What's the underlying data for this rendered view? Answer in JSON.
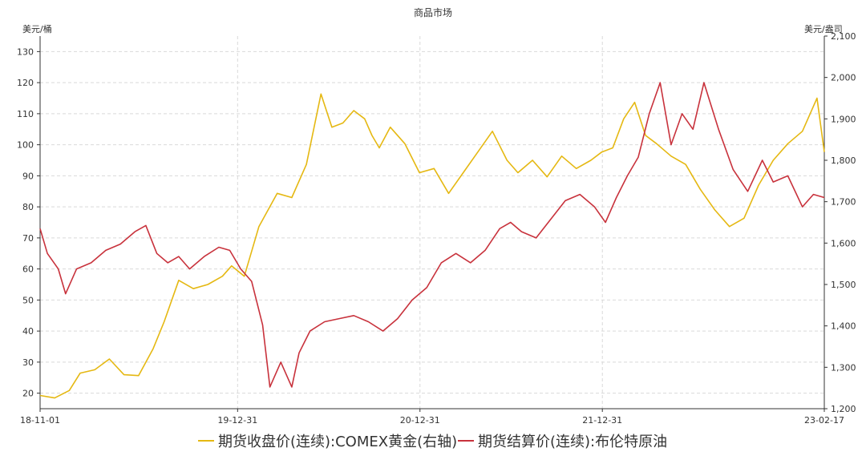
{
  "chart_data": {
    "type": "line",
    "title": "商品市场",
    "left_axis": {
      "unit": "美元/桶",
      "ylim": [
        15,
        135
      ],
      "ticks": [
        20,
        30,
        40,
        50,
        60,
        70,
        80,
        90,
        100,
        110,
        120,
        130
      ]
    },
    "right_axis": {
      "unit": "美元/盎司",
      "ylim": [
        1200,
        2100
      ],
      "ticks": [
        1200,
        1300,
        1400,
        1500,
        1600,
        1700,
        1800,
        1900,
        2000,
        2100
      ]
    },
    "x": {
      "range": [
        0,
        4.3
      ],
      "ticks": [
        0,
        1.083,
        2.083,
        3.083,
        4.3
      ],
      "tick_labels": [
        "18-11-01",
        "19-12-31",
        "20-12-31",
        "21-12-31",
        "23-02-17"
      ]
    },
    "series": [
      {
        "name": "期货收盘价(连续):COMEX黄金(右轴)",
        "axis": "right",
        "color": "#E5B812",
        "x": [
          0.0,
          0.08,
          0.16,
          0.22,
          0.3,
          0.38,
          0.46,
          0.54,
          0.62,
          0.68,
          0.76,
          0.84,
          0.92,
          1.0,
          1.05,
          1.12,
          1.2,
          1.3,
          1.38,
          1.46,
          1.54,
          1.6,
          1.66,
          1.72,
          1.78,
          1.82,
          1.86,
          1.92,
          2.0,
          2.08,
          2.16,
          2.24,
          2.32,
          2.4,
          2.48,
          2.56,
          2.62,
          2.7,
          2.78,
          2.86,
          2.94,
          3.02,
          3.08,
          3.14,
          3.2,
          3.26,
          3.32,
          3.38,
          3.46,
          3.54,
          3.62,
          3.7,
          3.78,
          3.86,
          3.94,
          4.02,
          4.1,
          4.18,
          4.26,
          4.3
        ],
        "values": [
          1232,
          1226,
          1244,
          1286,
          1294,
          1320,
          1282,
          1280,
          1345,
          1410,
          1510,
          1490,
          1500,
          1520,
          1545,
          1520,
          1640,
          1720,
          1710,
          1790,
          1960,
          1880,
          1890,
          1920,
          1900,
          1860,
          1830,
          1880,
          1840,
          1770,
          1780,
          1720,
          1770,
          1820,
          1870,
          1800,
          1770,
          1800,
          1760,
          1810,
          1780,
          1800,
          1820,
          1830,
          1900,
          1940,
          1860,
          1840,
          1810,
          1790,
          1730,
          1680,
          1640,
          1660,
          1740,
          1800,
          1840,
          1870,
          1950,
          1820
        ]
      },
      {
        "name": "期货结算价(连续):布伦特原油",
        "axis": "left",
        "color": "#C8323C",
        "x": [
          0.0,
          0.04,
          0.1,
          0.14,
          0.2,
          0.28,
          0.36,
          0.44,
          0.52,
          0.58,
          0.64,
          0.7,
          0.76,
          0.82,
          0.9,
          0.98,
          1.04,
          1.1,
          1.16,
          1.22,
          1.26,
          1.32,
          1.38,
          1.42,
          1.48,
          1.56,
          1.64,
          1.72,
          1.8,
          1.88,
          1.96,
          2.04,
          2.12,
          2.2,
          2.28,
          2.36,
          2.44,
          2.52,
          2.58,
          2.64,
          2.72,
          2.8,
          2.88,
          2.96,
          3.04,
          3.1,
          3.16,
          3.22,
          3.28,
          3.34,
          3.4,
          3.46,
          3.52,
          3.58,
          3.64,
          3.72,
          3.8,
          3.88,
          3.96,
          4.02,
          4.1,
          4.18,
          4.24,
          4.3
        ],
        "values": [
          73,
          65,
          60,
          52,
          60,
          62,
          66,
          68,
          72,
          74,
          65,
          62,
          64,
          60,
          64,
          67,
          66,
          60,
          56,
          42,
          22,
          30,
          22,
          33,
          40,
          43,
          44,
          45,
          43,
          40,
          44,
          50,
          54,
          62,
          65,
          62,
          66,
          73,
          75,
          72,
          70,
          76,
          82,
          84,
          80,
          75,
          83,
          90,
          96,
          110,
          120,
          100,
          110,
          105,
          120,
          105,
          92,
          85,
          95,
          88,
          90,
          80,
          84,
          83
        ]
      }
    ]
  }
}
